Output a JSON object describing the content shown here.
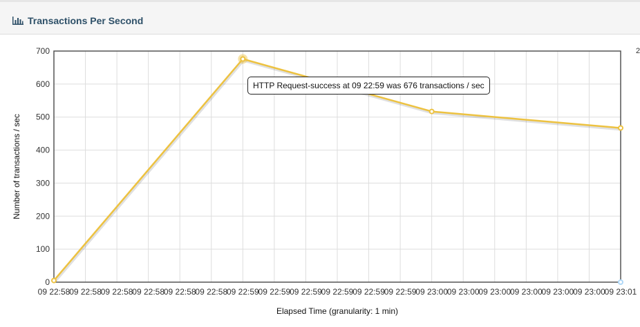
{
  "panel": {
    "title": "Transactions Per Second",
    "icon": "bar-chart-icon"
  },
  "tooltip": {
    "text": "HTTP Request-success at 09 22:59 was 676 transactions / sec"
  },
  "edge_label": "2",
  "chart_data": {
    "type": "line",
    "title": "",
    "xlabel": "Elapsed Time (granularity: 1 min)",
    "ylabel": "Number of transactions / sec",
    "ylim": [
      0,
      700
    ],
    "yticks": [
      "0",
      "100",
      "200",
      "300",
      "400",
      "500",
      "600",
      "700"
    ],
    "xlim": [
      "09 22:58",
      "09 23:01"
    ],
    "xtick_labels": [
      "09 22:58",
      "09 22:58",
      "09 22:58",
      "09 22:58",
      "09 22:58",
      "09 22:58",
      "09 22:59",
      "09 22:59",
      "09 22:59",
      "09 22:59",
      "09 22:59",
      "09 22:59",
      "09 23:00",
      "09 23:00",
      "09 23:00",
      "09 23:00",
      "09 23:00",
      "09 23:00",
      "09 23:01"
    ],
    "grid": true,
    "series": [
      {
        "name": "HTTP Request-success",
        "color": "#edc240",
        "x": [
          "09 22:58",
          "09 22:59",
          "09 23:00",
          "09 23:01"
        ],
        "values": [
          5,
          676,
          517,
          467
        ]
      }
    ],
    "extra_points": [
      {
        "x": "09 23:01",
        "y": 0,
        "color": "#afd8f8"
      }
    ],
    "highlight_index": 1
  }
}
